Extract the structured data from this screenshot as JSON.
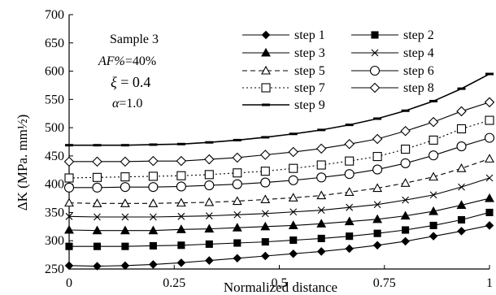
{
  "chart_data": {
    "type": "line",
    "title": "",
    "xlabel": "Normalized distance",
    "ylabel": "ΔK (MPa. mm½)",
    "xlim": [
      0,
      1
    ],
    "ylim": [
      250,
      700
    ],
    "x_ticks": [
      {
        "value": 0,
        "label": "0"
      },
      {
        "value": 0.25,
        "label": "0.25"
      },
      {
        "value": 0.5,
        "label": "0.5"
      },
      {
        "value": 0.75,
        "label": "0.75"
      },
      {
        "value": 1,
        "label": "1"
      }
    ],
    "y_ticks": [
      250,
      300,
      350,
      400,
      450,
      500,
      550,
      600,
      650,
      700
    ],
    "grid": false,
    "legend_position": "top-right",
    "x": [
      0,
      0.0667,
      0.1333,
      0.2,
      0.2667,
      0.3333,
      0.4,
      0.4667,
      0.5333,
      0.6,
      0.6667,
      0.7333,
      0.8,
      0.8667,
      0.9333,
      1.0
    ],
    "series": [
      {
        "name": "step 1",
        "marker": "diamond-filled",
        "line": "solid",
        "values": [
          256,
          255,
          256,
          258,
          261,
          265,
          269,
          273,
          277,
          281,
          286,
          292,
          299,
          308,
          317,
          327
        ]
      },
      {
        "name": "step 2",
        "marker": "square-filled",
        "line": "solid",
        "values": [
          290,
          290,
          290,
          291,
          292,
          294,
          296,
          298,
          301,
          304,
          308,
          313,
          319,
          327,
          337,
          350
        ]
      },
      {
        "name": "step 3",
        "marker": "triangle-filled",
        "line": "solid",
        "values": [
          319,
          318,
          318,
          318,
          320,
          321,
          323,
          325,
          327,
          330,
          334,
          338,
          344,
          352,
          363,
          375
        ]
      },
      {
        "name": "step 4",
        "marker": "x",
        "line": "solid",
        "values": [
          343,
          342,
          342,
          342,
          343,
          344,
          346,
          348,
          351,
          354,
          359,
          364,
          372,
          381,
          395,
          411
        ]
      },
      {
        "name": "step 5",
        "marker": "triangle-open",
        "line": "dashed",
        "values": [
          367,
          366,
          366,
          366,
          367,
          368,
          370,
          373,
          376,
          380,
          386,
          393,
          402,
          413,
          428,
          445
        ]
      },
      {
        "name": "step 6",
        "marker": "circle-open",
        "line": "solid",
        "values": [
          394,
          394,
          395,
          395,
          396,
          398,
          400,
          403,
          407,
          412,
          418,
          426,
          437,
          451,
          467,
          482
        ]
      },
      {
        "name": "step 7",
        "marker": "square-open",
        "line": "dotted",
        "values": [
          411,
          412,
          413,
          414,
          415,
          417,
          420,
          423,
          428,
          434,
          441,
          449,
          462,
          478,
          498,
          513
        ]
      },
      {
        "name": "step 8",
        "marker": "diamond-open",
        "line": "solid",
        "values": [
          440,
          440,
          440,
          441,
          441,
          444,
          447,
          452,
          457,
          463,
          471,
          480,
          494,
          510,
          529,
          545
        ]
      },
      {
        "name": "step 9",
        "marker": "dash",
        "line": "solid",
        "values": [
          469,
          469,
          469,
          470,
          471,
          474,
          478,
          483,
          489,
          496,
          505,
          516,
          530,
          547,
          569,
          595
        ]
      }
    ],
    "annotations": {
      "sample": "Sample 3",
      "af_prefix": "AF%",
      "af_value": "=40%",
      "xi_symbol": "ξ",
      "xi_value": " = 0.4",
      "alpha_symbol": "α",
      "alpha_value": "=1.0"
    }
  }
}
